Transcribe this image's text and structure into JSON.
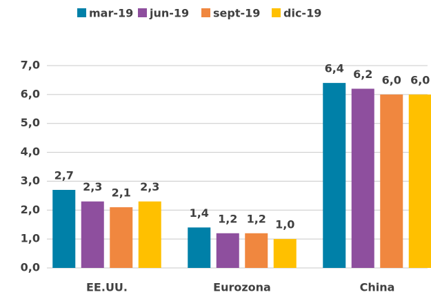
{
  "chart_data": {
    "type": "bar",
    "categories": [
      "EE.UU.",
      "Eurozona",
      "China"
    ],
    "series": [
      {
        "name": "mar-19",
        "color": "#0080a8",
        "values": [
          2.7,
          1.4,
          6.4
        ],
        "value_labels": [
          "2,7",
          "1,4",
          "6,4"
        ]
      },
      {
        "name": "jun-19",
        "color": "#8e4f9e",
        "values": [
          2.3,
          1.2,
          6.2
        ],
        "value_labels": [
          "2,3",
          "1,2",
          "6,2"
        ]
      },
      {
        "name": "sept-19",
        "color": "#f0873f",
        "values": [
          2.1,
          1.2,
          6.0
        ],
        "value_labels": [
          "2,1",
          "1,2",
          "6,0"
        ]
      },
      {
        "name": "dic-19",
        "color": "#ffc000",
        "values": [
          2.3,
          1.0,
          6.0
        ],
        "value_labels": [
          "2,3",
          "1,0",
          "6,0"
        ]
      }
    ],
    "ylim": [
      0,
      7
    ],
    "yticks": [
      {
        "value": 0,
        "label": "0,0"
      },
      {
        "value": 1,
        "label": "1,0"
      },
      {
        "value": 2,
        "label": "2,0"
      },
      {
        "value": 3,
        "label": "3,0"
      },
      {
        "value": 4,
        "label": "4,0"
      },
      {
        "value": 5,
        "label": "5,0"
      },
      {
        "value": 6,
        "label": "6,0"
      },
      {
        "value": 7,
        "label": "7,0"
      }
    ],
    "grid": true,
    "legend": "top"
  }
}
